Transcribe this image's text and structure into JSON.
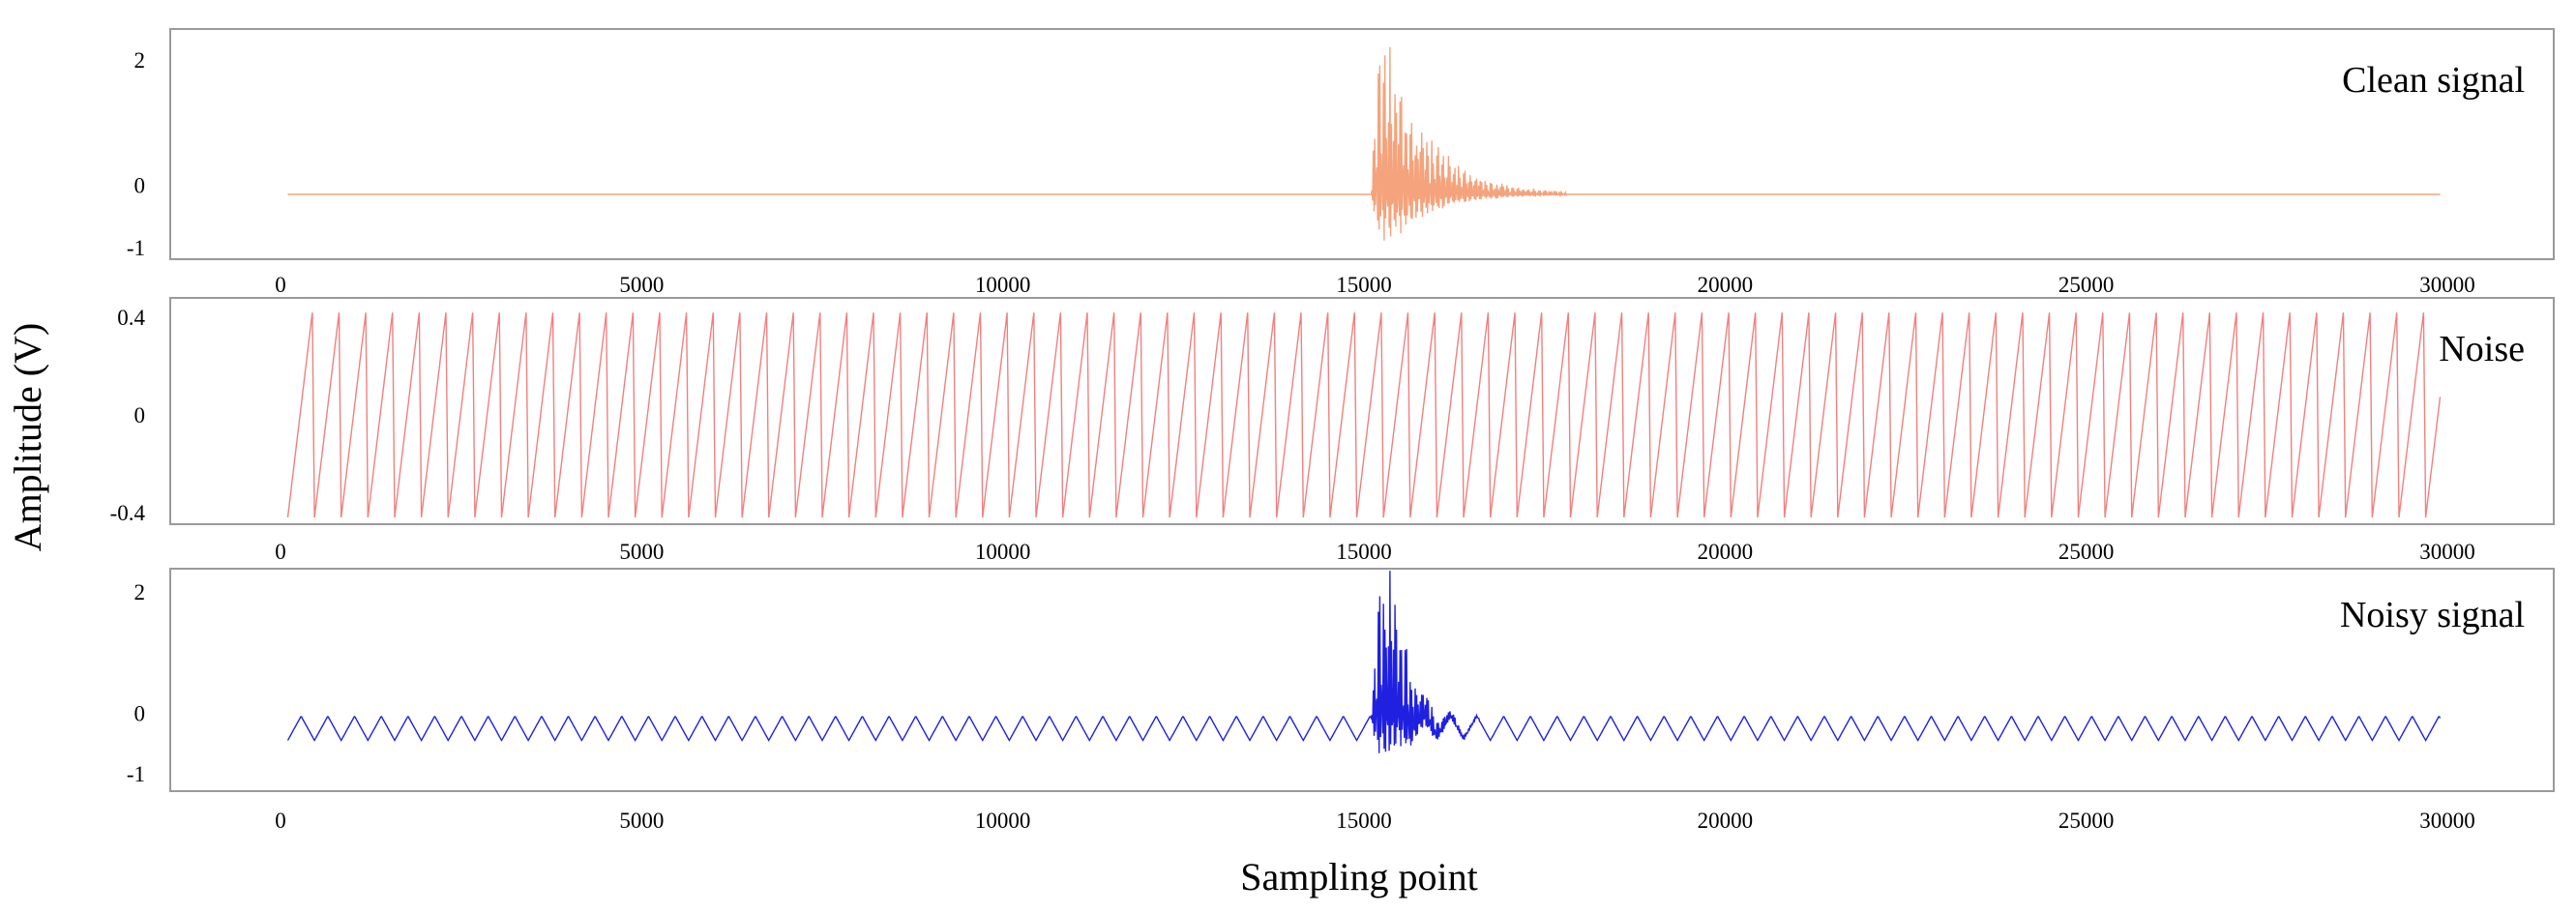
{
  "figure": {
    "ylabel": "Amplitude (V)",
    "xlabel": "Sampling point"
  },
  "chart_data": [
    {
      "type": "line",
      "title": "Clean signal",
      "xlim": [
        0,
        30000
      ],
      "ylim": [
        -1,
        2
      ],
      "x_ticks": [
        0,
        5000,
        10000,
        15000,
        20000,
        25000,
        30000
      ],
      "y_ticks": [
        2,
        0,
        -1
      ],
      "x_tick_labels": [
        "0",
        "5000",
        "10000",
        "15000",
        "20000",
        "25000",
        "30000"
      ],
      "y_tick_labels": [
        "2",
        "0",
        "-1"
      ],
      "series": [
        {
          "color": "#f4a37c",
          "x_range": [
            100,
            29900
          ],
          "baseline": -0.15,
          "burst": {
            "start": 15100,
            "peak_start": 15200,
            "peak_end": 15400,
            "decay_end": 17800,
            "peak_max": 2.3,
            "peak_min": -0.95
          }
        }
      ]
    },
    {
      "type": "line",
      "title": "Noise",
      "xlim": [
        0,
        30000
      ],
      "ylim": [
        -0.4,
        0.4
      ],
      "x_ticks": [
        0,
        5000,
        10000,
        15000,
        20000,
        25000,
        30000
      ],
      "y_ticks": [
        0.4,
        0,
        -0.4
      ],
      "x_tick_labels": [
        "0",
        "5000",
        "10000",
        "15000",
        "20000",
        "25000",
        "30000"
      ],
      "y_tick_labels": [
        "0.4",
        "0",
        "-0.4"
      ],
      "series": [
        {
          "color": "#f08080",
          "waveform": "sawtooth",
          "x_range": [
            100,
            29900
          ],
          "period": 370,
          "amplitude": 0.42
        }
      ]
    },
    {
      "type": "line",
      "title": "Noisy signal",
      "xlim": [
        0,
        30000
      ],
      "ylim": [
        -1,
        2
      ],
      "x_ticks": [
        0,
        5000,
        10000,
        15000,
        20000,
        25000,
        30000
      ],
      "y_ticks": [
        2,
        0,
        -1
      ],
      "x_tick_labels": [
        "0",
        "5000",
        "10000",
        "15000",
        "20000",
        "25000",
        "30000"
      ],
      "y_tick_labels": [
        "2",
        "0",
        "-1"
      ],
      "series": [
        {
          "color": "#2020e0",
          "waveform": "triangle",
          "x_range": [
            100,
            29900
          ],
          "period": 370,
          "center": -0.25,
          "amplitude": 0.2,
          "burst": {
            "start": 15100,
            "peak_start": 15200,
            "peak_end": 15400,
            "decay_end": 16600,
            "peak_max": 2.3,
            "peak_min": -1.0
          }
        }
      ]
    }
  ]
}
